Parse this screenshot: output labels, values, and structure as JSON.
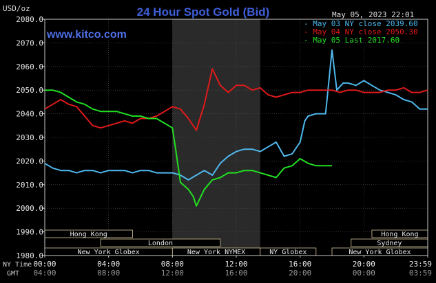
{
  "chart_data": {
    "type": "line",
    "title": "24 Hour Spot Gold (Bid)",
    "site": "www.kitco.com",
    "timestamp": "May 05, 2023 22:01",
    "ylabel": "USD/oz",
    "ylim": [
      1980,
      2080
    ],
    "yticks": [
      "2080.0",
      "2070.0",
      "2060.0",
      "2050.0",
      "2040.0",
      "2030.0",
      "2020.0",
      "2010.0",
      "2000.0",
      "1990.0",
      "1980.0"
    ],
    "xlim": [
      0,
      24
    ],
    "ny_time_label": "NY Time",
    "gmt_label": "GMT",
    "xticks_ny": [
      "00:00",
      "04:00",
      "08:00",
      "12:00",
      "16:00",
      "20:00",
      "23:59"
    ],
    "xticks_gmt": [
      "04:00",
      "08:00",
      "12:00",
      "16:00",
      "20:00",
      "00:00",
      "03:59"
    ],
    "shaded_region": [
      8,
      13.5
    ],
    "grid": true,
    "legend_position": "top-right",
    "colors": {
      "background": "#000000",
      "grid": "#505050",
      "axis": "#c8c8c8",
      "title": "#3f5fd8",
      "site": "#4f6fe8",
      "shaded": "#2a2a2a",
      "session_border": "#d8c89a"
    },
    "series": [
      {
        "name": "May 03 NY close 2039.60",
        "color": "#4fb8ee",
        "x": [
          0,
          0.5,
          1,
          1.5,
          2,
          2.5,
          3,
          3.5,
          4,
          4.5,
          5,
          5.5,
          6,
          6.5,
          7,
          7.5,
          8,
          8.5,
          9,
          9.5,
          10,
          10.5,
          11,
          11.5,
          12,
          12.5,
          13,
          13.5,
          14,
          14.5,
          15,
          15.5,
          16,
          16.3,
          16.5,
          17,
          17.5,
          17.6,
          18,
          18.3,
          18.7,
          19,
          19.5,
          20,
          20.5,
          21,
          21.5,
          22,
          22.5,
          23,
          23.5,
          23.99
        ],
        "values": [
          2019,
          2017,
          2016,
          2016,
          2015,
          2016,
          2016,
          2015,
          2016,
          2016,
          2016,
          2015,
          2016,
          2016,
          2015,
          2015,
          2015,
          2014,
          2012,
          2014,
          2016,
          2014,
          2019,
          2022,
          2024,
          2025,
          2025,
          2024,
          2026,
          2028,
          2022,
          2023,
          2028,
          2037,
          2039,
          2040,
          2040,
          2040,
          2067,
          2050,
          2053,
          2053,
          2052,
          2054,
          2052,
          2050,
          2049,
          2048,
          2046,
          2045,
          2042,
          2042
        ]
      },
      {
        "name": "May 04 NY close 2050.30",
        "color": "#e01a1a",
        "x": [
          0,
          0.5,
          1,
          1.5,
          2,
          2.5,
          3,
          3.5,
          4,
          4.5,
          5,
          5.5,
          6,
          6.5,
          7,
          7.5,
          8,
          8.5,
          9,
          9.5,
          10,
          10.5,
          11,
          11.5,
          12,
          12.5,
          13,
          13.5,
          14,
          14.5,
          15,
          15.5,
          16,
          16.5,
          17,
          17.5,
          18,
          18.5,
          19,
          19.5,
          20,
          20.5,
          21,
          21.5,
          22,
          22.5,
          23,
          23.5,
          23.99
        ],
        "values": [
          2042,
          2044,
          2046,
          2044,
          2043,
          2039,
          2035,
          2034,
          2035,
          2036,
          2037,
          2036,
          2038,
          2038,
          2039,
          2041,
          2043,
          2042,
          2038,
          2033,
          2044,
          2059,
          2052,
          2049,
          2052,
          2052,
          2050,
          2051,
          2048,
          2047,
          2048,
          2049,
          2049,
          2050,
          2050,
          2050,
          2050,
          2049,
          2050,
          2050,
          2049,
          2049,
          2049,
          2050,
          2050,
          2051,
          2049,
          2049,
          2050
        ]
      },
      {
        "name": "May 05 Last 2017.60",
        "color": "#22e022",
        "x": [
          0,
          0.5,
          1,
          1.5,
          2,
          2.5,
          3,
          3.5,
          4,
          4.5,
          5,
          5.5,
          6,
          6.5,
          7,
          7.5,
          8,
          8.2,
          8.5,
          9,
          9.3,
          9.5,
          10,
          10.5,
          11,
          11.5,
          12,
          12.5,
          13,
          13.5,
          14,
          14.5,
          15,
          15.5,
          16,
          16.5,
          17,
          17.5,
          18
        ],
        "values": [
          2050,
          2050,
          2049,
          2047,
          2045,
          2044,
          2042,
          2041,
          2041,
          2041,
          2040,
          2039,
          2039,
          2038,
          2038,
          2036,
          2034,
          2025,
          2011,
          2008,
          2005,
          2001,
          2008,
          2012,
          2013,
          2015,
          2015,
          2016,
          2016,
          2015,
          2014,
          2013,
          2017,
          2018,
          2021,
          2019,
          2018,
          2018,
          2018
        ]
      }
    ]
  },
  "sessions": [
    {
      "label": "Hong Kong",
      "start": 0,
      "end": 5.5,
      "row": 0
    },
    {
      "label": "Hong Kong",
      "start": 20.5,
      "end": 24,
      "row": 0
    },
    {
      "label": "London",
      "start": 3.5,
      "end": 11,
      "row": 1
    },
    {
      "label": "Sydney",
      "start": 19.2,
      "end": 24,
      "row": 1
    },
    {
      "label": "New York Globex",
      "start": 0,
      "end": 8,
      "row": 2
    },
    {
      "label": "New York NYMEX",
      "start": 8,
      "end": 13.5,
      "row": 2
    },
    {
      "label": "NY Globex",
      "start": 13.5,
      "end": 17,
      "row": 2
    },
    {
      "label": "New York Globex",
      "start": 18,
      "end": 24,
      "row": 2
    }
  ]
}
